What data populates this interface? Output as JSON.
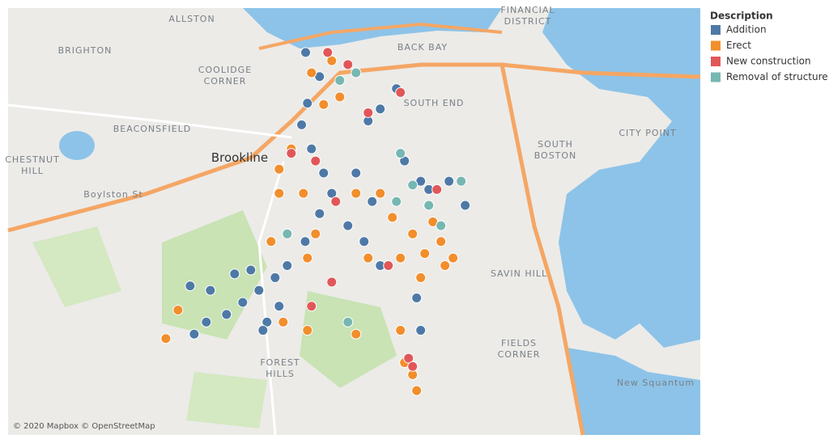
{
  "chart_data": {
    "type": "scatter",
    "xlim": [
      -71.171,
      -71.017
    ],
    "ylim": [
      42.289,
      42.3563
    ],
    "legend_title": "Description",
    "legend": "right",
    "series": [
      {
        "name": "Addition",
        "color": "#4e79a7",
        "x": [
          -71.1048,
          -71.1017,
          -71.1044,
          -71.1057,
          -71.1035,
          -71.1008,
          -71.099,
          -71.1017,
          -71.1049,
          -71.1089,
          -71.1116,
          -71.1152,
          -71.1188,
          -71.1224,
          -71.1269,
          -71.1296,
          -71.1305,
          -71.126,
          -71.1134,
          -71.1107,
          -71.0882,
          -71.0909,
          -71.0846,
          -71.0936,
          -71.09,
          -71.0828,
          -71.0774,
          -71.0729,
          -71.0693,
          -71.0918,
          -71.0882,
          -71.0801,
          -71.0792,
          -71.0792,
          -71.0954,
          -71.117,
          -71.1143,
          -71.1206
        ],
        "y": [
          42.3493,
          42.3455,
          42.3413,
          42.3379,
          42.3341,
          42.3303,
          42.3271,
          42.3239,
          42.3195,
          42.3157,
          42.3138,
          42.3118,
          42.3099,
          42.308,
          42.3068,
          42.3049,
          42.3125,
          42.3118,
          42.3068,
          42.3093,
          42.3404,
          42.3385,
          42.3436,
          42.3303,
          42.3258,
          42.3322,
          42.3277,
          42.329,
          42.3252,
          42.3195,
          42.3157,
          42.3106,
          42.3055,
          42.329,
          42.322,
          42.315,
          42.3055,
          42.3144
        ]
      },
      {
        "name": "Erect",
        "color": "#f28e2b",
        "x": [
          -71.1035,
          -71.099,
          -71.1008,
          -71.108,
          -71.1107,
          -71.1107,
          -71.0936,
          -71.0882,
          -71.0855,
          -71.081,
          -71.0765,
          -71.0747,
          -71.072,
          -71.0738,
          -71.0783,
          -71.0792,
          -71.0837,
          -71.0909,
          -71.1026,
          -71.1044,
          -71.1098,
          -71.1044,
          -71.1359,
          -71.1332,
          -71.0936,
          -71.0837,
          -71.0828,
          -71.081,
          -71.0801,
          -71.0972,
          -71.1125,
          -71.1053
        ],
        "y": [
          42.3461,
          42.348,
          42.3411,
          42.3341,
          42.3309,
          42.3271,
          42.3271,
          42.3271,
          42.3233,
          42.3207,
          42.3226,
          42.3195,
          42.3169,
          42.3157,
          42.3176,
          42.3138,
          42.3169,
          42.3169,
          42.3207,
          42.3169,
          42.3068,
          42.3055,
          42.3042,
          42.3087,
          42.3049,
          42.3055,
          42.3004,
          42.2985,
          42.296,
          42.3423,
          42.3195,
          42.3271
        ]
      },
      {
        "name": "New construction",
        "color": "#e15759",
        "x": [
          -71.0999,
          -71.0954,
          -71.108,
          -71.1026,
          -71.0981,
          -71.0756,
          -71.0864,
          -71.099,
          -71.1035,
          -71.0819,
          -71.081,
          -71.0837,
          -71.0909
        ],
        "y": [
          42.3493,
          42.3474,
          42.3334,
          42.3322,
          42.3258,
          42.3277,
          42.3157,
          42.3131,
          42.3093,
          42.3011,
          42.2998,
          42.343,
          42.3398
        ]
      },
      {
        "name": "Removal of structure",
        "color": "#76b7b2",
        "x": [
          -71.0936,
          -71.0837,
          -71.0702,
          -71.081,
          -71.0774,
          -71.0747,
          -71.0846,
          -71.0972,
          -71.1089,
          -71.0954
        ],
        "y": [
          42.3461,
          42.3334,
          42.329,
          42.3284,
          42.3252,
          42.322,
          42.3258,
          42.3449,
          42.3207,
          42.3068
        ]
      }
    ]
  },
  "map": {
    "labels": [
      {
        "lines": [
          "ALLSTON"
        ]
      },
      {
        "lines": [
          "BRIGHTON"
        ]
      },
      {
        "lines": [
          "COOLIDGE",
          "CORNER"
        ]
      },
      {
        "lines": [
          "BACK BAY"
        ]
      },
      {
        "lines": [
          "FINANCIAL",
          "DISTRICT"
        ]
      },
      {
        "lines": [
          "SOUTH END"
        ]
      },
      {
        "lines": [
          "BEACONSFIELD"
        ]
      },
      {
        "lines": [
          "CHESTNUT",
          "HILL"
        ]
      },
      {
        "lines": [
          "Brookline"
        ]
      },
      {
        "lines": [
          "SOUTH",
          "BOSTON"
        ]
      },
      {
        "lines": [
          "CITY POINT"
        ]
      },
      {
        "lines": [
          "SAVIN HILL"
        ]
      },
      {
        "lines": [
          "FIELDS",
          "CORNER"
        ]
      },
      {
        "lines": [
          "FOREST",
          "HILLS"
        ]
      },
      {
        "lines": [
          "New Squantum"
        ]
      },
      {
        "lines": [
          "Boylston St"
        ]
      }
    ],
    "attribution": "© 2020 Mapbox © OpenStreetMap"
  }
}
